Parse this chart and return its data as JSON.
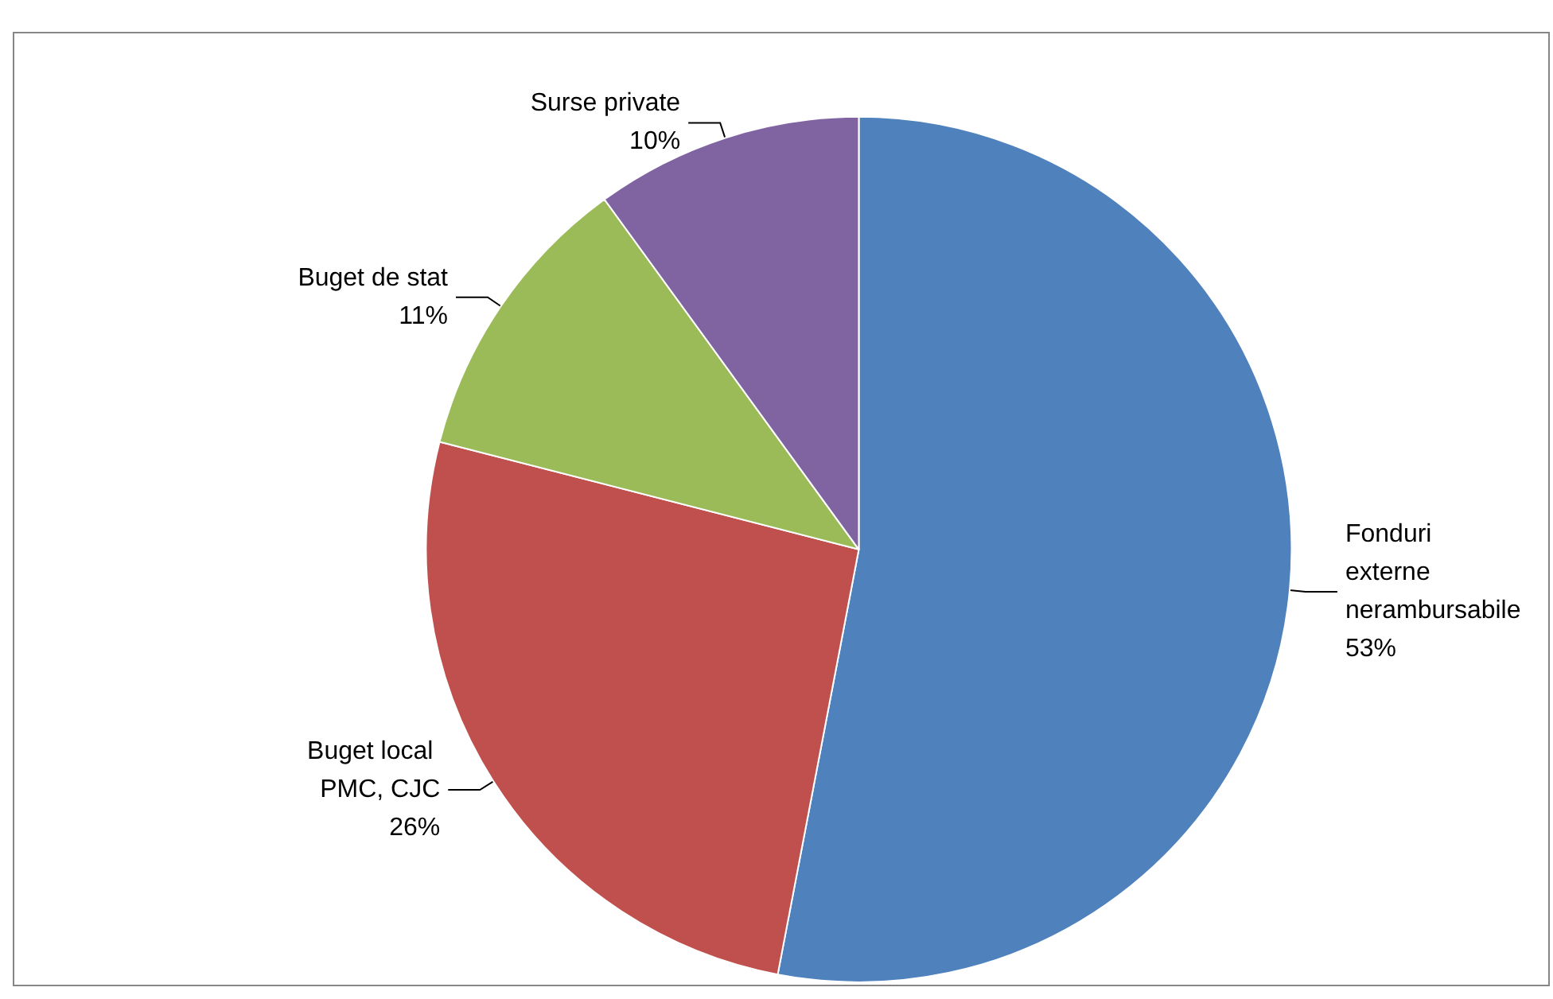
{
  "chart_data": {
    "type": "pie",
    "categories": [
      "Fonduri externe nerambursabile",
      "Buget local PMC, CJC",
      "Buget de stat",
      "Surse private"
    ],
    "values": [
      53,
      26,
      11,
      10
    ],
    "colors": [
      "#4f81bd",
      "#c0504d",
      "#9bbb59",
      "#8064a2"
    ],
    "value_labels": [
      "53%",
      "26%",
      "11%",
      "10%"
    ],
    "legend": false
  }
}
